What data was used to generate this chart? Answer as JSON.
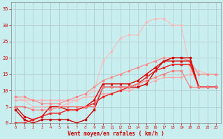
{
  "bg_color": "#c8eef0",
  "grid_color": "#b0c8c8",
  "xlabel": "Vent moyen/en rafales ( km/h )",
  "xlabel_color": "#cc0000",
  "tick_color": "#cc0000",
  "xlim": [
    -0.5,
    23.5
  ],
  "ylim": [
    0,
    37
  ],
  "yticks": [
    0,
    5,
    10,
    15,
    20,
    25,
    30,
    35
  ],
  "xticks": [
    0,
    1,
    2,
    3,
    4,
    5,
    6,
    7,
    8,
    9,
    10,
    11,
    12,
    13,
    14,
    15,
    16,
    17,
    18,
    19,
    20,
    21,
    22,
    23
  ],
  "series": [
    {
      "x": [
        0,
        1,
        2,
        3,
        4,
        5,
        6,
        7,
        8,
        9,
        10,
        11,
        12,
        13,
        14,
        15,
        16,
        17,
        18,
        19,
        20,
        21,
        22,
        23
      ],
      "y": [
        7,
        7,
        7,
        7,
        7,
        7,
        7,
        7,
        8,
        8,
        9,
        9,
        10,
        10,
        11,
        12,
        13,
        14,
        14,
        14,
        15,
        15,
        15,
        15
      ],
      "color": "#ffaaaa",
      "lw": 0.8,
      "marker": "s",
      "ms": 2.0
    },
    {
      "x": [
        0,
        1,
        2,
        3,
        4,
        5,
        6,
        7,
        8,
        9,
        10,
        11,
        12,
        13,
        14,
        15,
        16,
        17,
        18,
        19,
        20,
        21,
        22,
        23
      ],
      "y": [
        8,
        7,
        5,
        5,
        5,
        5,
        6,
        7,
        8,
        10,
        19,
        22,
        26,
        27,
        27,
        31,
        32,
        32,
        30,
        30,
        16,
        16,
        15,
        15
      ],
      "color": "#ffbbbb",
      "lw": 0.8,
      "marker": "s",
      "ms": 2.0
    },
    {
      "x": [
        0,
        1,
        2,
        3,
        4,
        5,
        6,
        7,
        8,
        9,
        10,
        11,
        12,
        13,
        14,
        15,
        16,
        17,
        18,
        19,
        20,
        21,
        22,
        23
      ],
      "y": [
        8,
        8,
        7,
        6,
        6,
        6,
        7,
        8,
        9,
        11,
        13,
        14,
        15,
        16,
        17,
        18,
        19,
        20,
        20,
        20,
        19,
        15,
        15,
        15
      ],
      "color": "#ff8888",
      "lw": 0.8,
      "marker": "s",
      "ms": 2.0
    },
    {
      "x": [
        0,
        1,
        2,
        3,
        4,
        5,
        6,
        7,
        8,
        9,
        10,
        11,
        12,
        13,
        14,
        15,
        16,
        17,
        18,
        19,
        20,
        21,
        22,
        23
      ],
      "y": [
        4,
        1,
        0,
        1,
        1,
        1,
        1,
        0,
        1,
        4,
        11,
        11,
        11,
        11,
        11,
        12,
        16,
        19,
        20,
        20,
        20,
        11,
        11,
        11
      ],
      "color": "#cc0000",
      "lw": 1.0,
      "marker": "s",
      "ms": 2.0
    },
    {
      "x": [
        0,
        1,
        2,
        3,
        4,
        5,
        6,
        7,
        8,
        9,
        10,
        11,
        12,
        13,
        14,
        15,
        16,
        17,
        18,
        19,
        20,
        21,
        22,
        23
      ],
      "y": [
        5,
        2,
        1,
        2,
        5,
        5,
        4,
        4,
        5,
        7,
        12,
        12,
        12,
        12,
        13,
        15,
        17,
        19,
        19,
        19,
        19,
        11,
        11,
        11
      ],
      "color": "#dd0000",
      "lw": 1.0,
      "marker": "s",
      "ms": 2.0
    },
    {
      "x": [
        0,
        1,
        2,
        3,
        4,
        5,
        6,
        7,
        8,
        9,
        10,
        11,
        12,
        13,
        14,
        15,
        16,
        17,
        18,
        19,
        20,
        21,
        22,
        23
      ],
      "y": [
        0,
        0,
        1,
        2,
        3,
        3,
        4,
        4,
        5,
        6,
        8,
        9,
        10,
        11,
        12,
        14,
        16,
        17,
        18,
        18,
        18,
        11,
        11,
        11
      ],
      "color": "#ee2222",
      "lw": 1.0,
      "marker": "s",
      "ms": 2.0
    },
    {
      "x": [
        0,
        1,
        2,
        3,
        4,
        5,
        6,
        7,
        8,
        9,
        10,
        11,
        12,
        13,
        14,
        15,
        16,
        17,
        18,
        19,
        20,
        21,
        22,
        23
      ],
      "y": [
        5,
        5,
        4,
        4,
        4,
        5,
        5,
        5,
        5,
        5,
        11,
        11,
        11,
        11,
        12,
        13,
        14,
        15,
        16,
        16,
        11,
        11,
        11,
        11
      ],
      "color": "#ff7777",
      "lw": 0.8,
      "marker": "s",
      "ms": 2.0
    }
  ]
}
